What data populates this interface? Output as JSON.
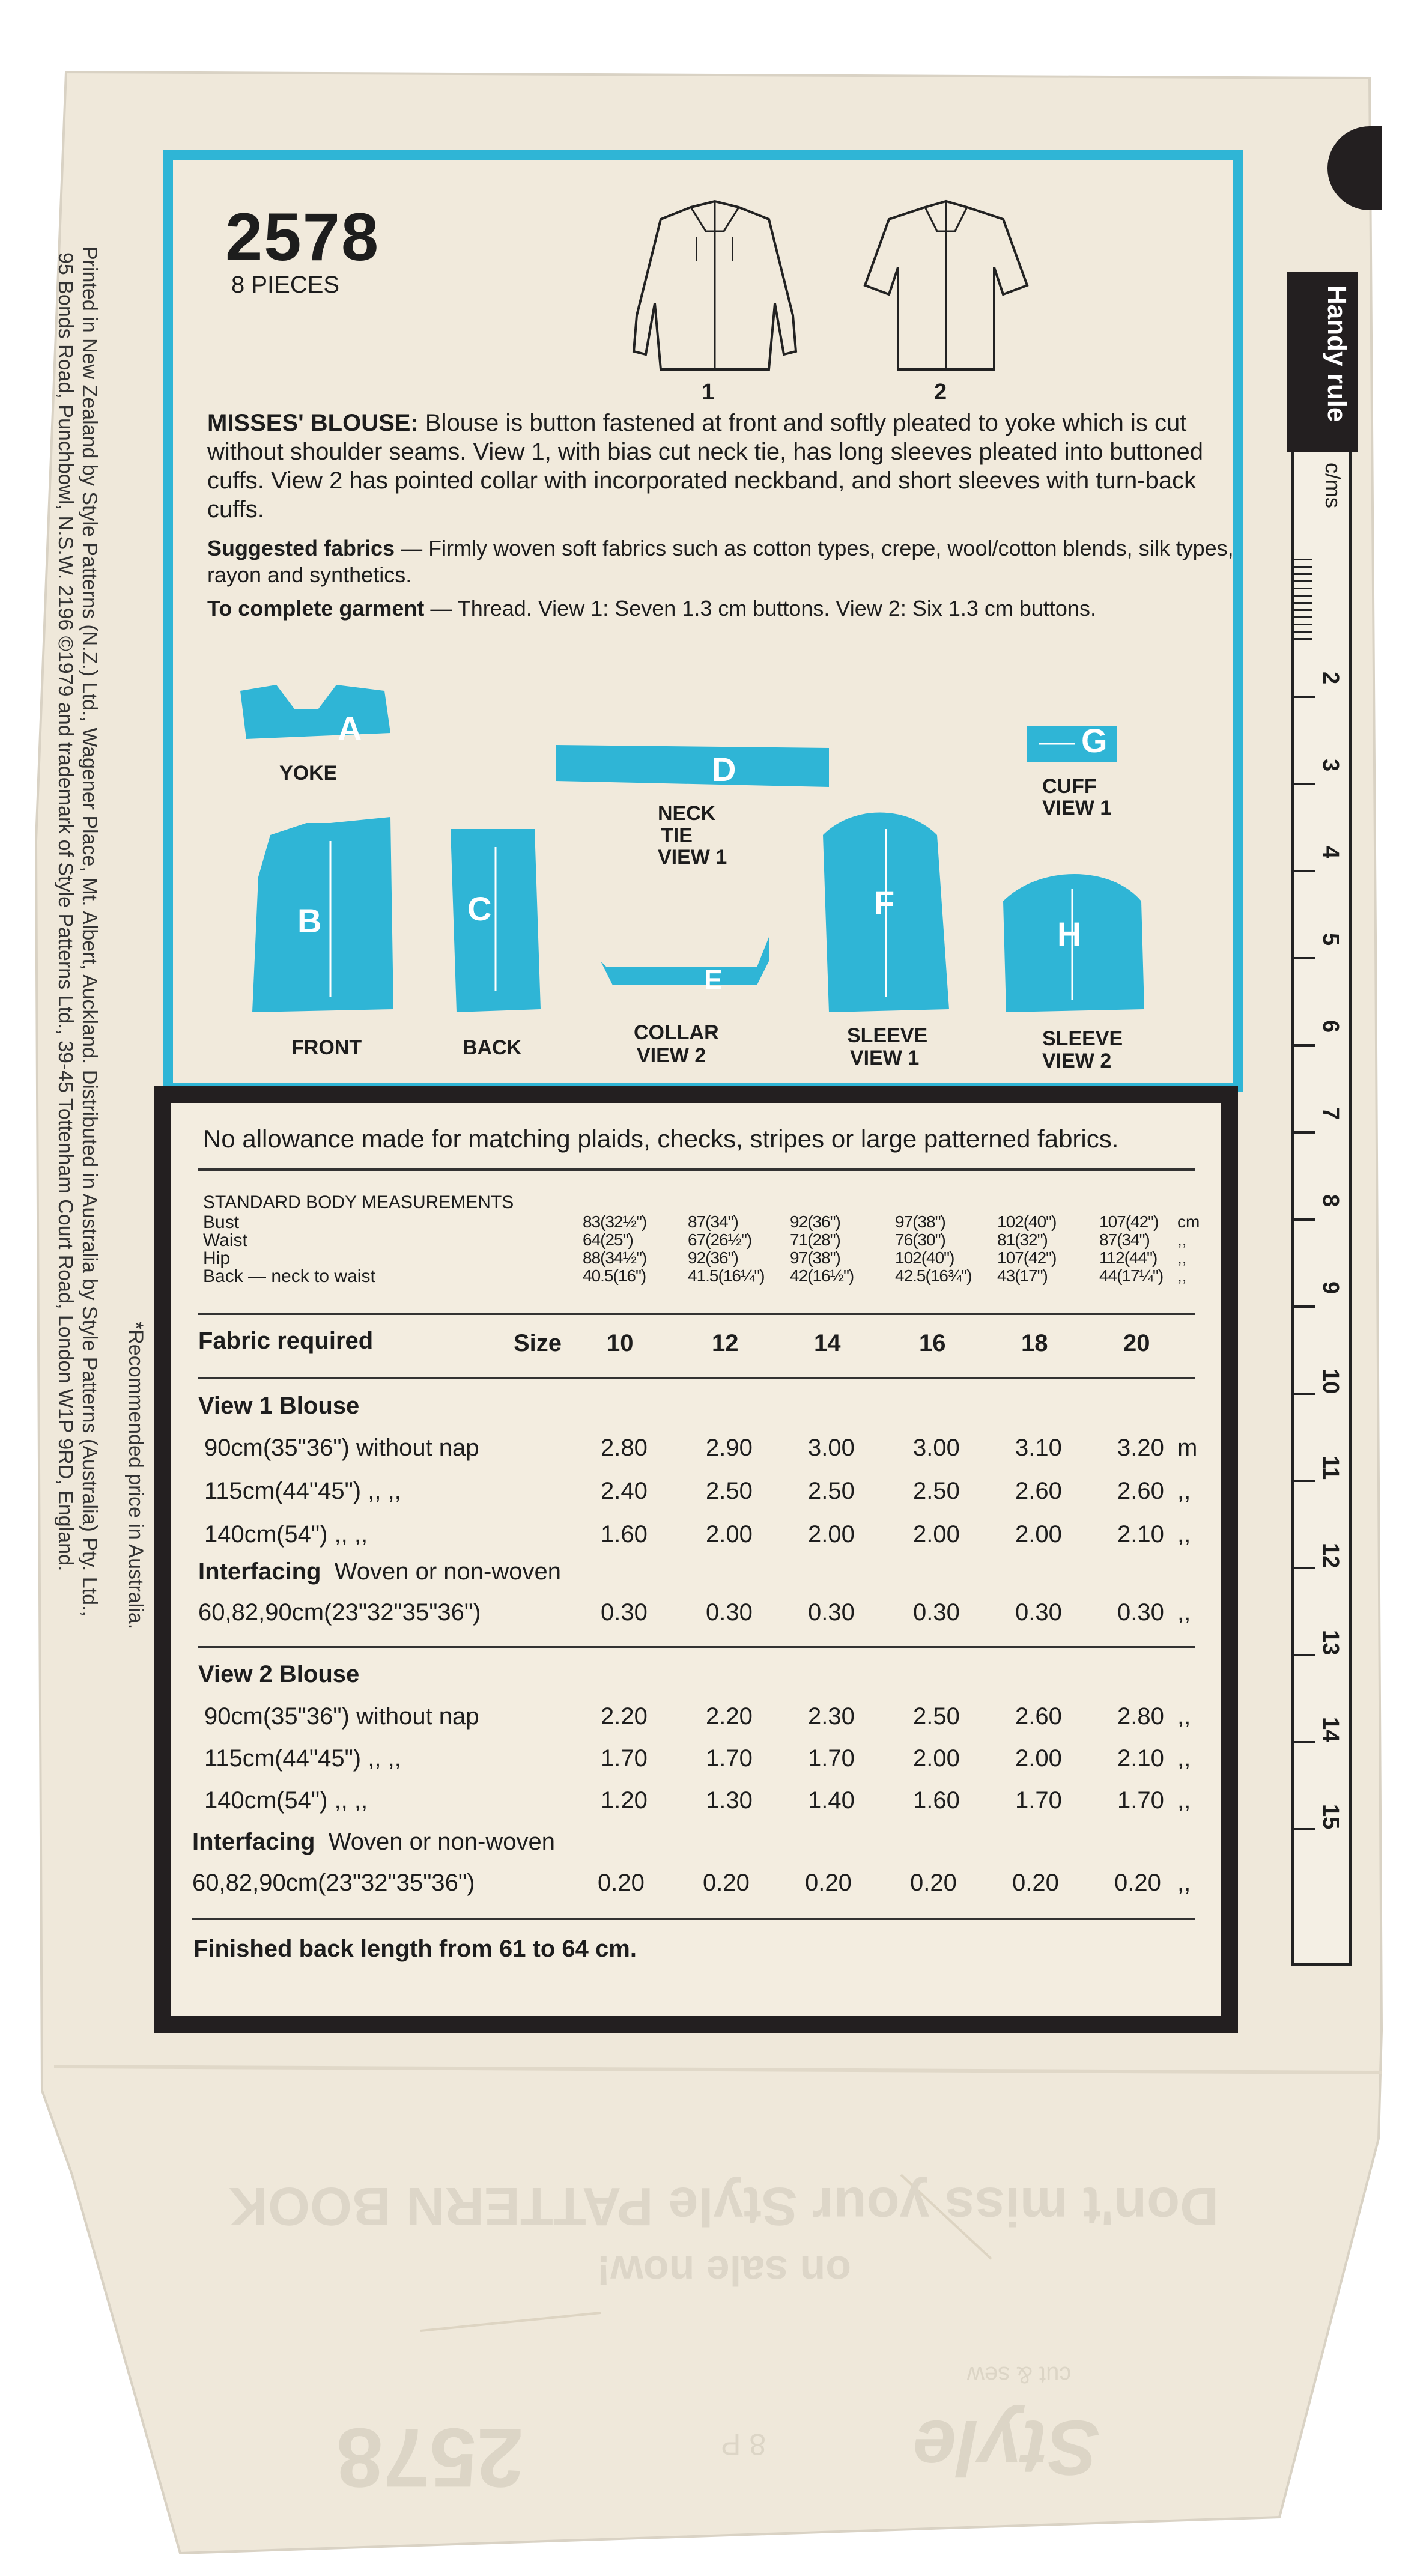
{
  "header": {
    "pattern_number": "2578",
    "pieces": "8 PIECES",
    "view1_label": "1",
    "view2_label": "2"
  },
  "description": {
    "title": "MISSES' BLOUSE:",
    "body_line1": "Blouse is button fastened at front and softly pleated to yoke which is cut",
    "body_line2": "without shoulder seams. View 1, with bias cut neck tie, has long sleeves pleated into buttoned",
    "body_line3": "cuffs. View 2 has pointed collar with incorporated neckband, and short sleeves with turn-back",
    "body_line4": "cuffs.",
    "fabrics_label": "Suggested fabrics",
    "fabrics_line1": " — Firmly woven soft fabrics such as cotton types, crepe, wool/cotton blends, silk types,",
    "fabrics_line2": "rayon and synthetics.",
    "complete_label": "To complete garment",
    "complete_text": " — Thread. View 1: Seven 1.3 cm buttons. View 2: Six 1.3 cm buttons."
  },
  "pieces_diagram": {
    "yoke": {
      "letter": "A",
      "label": "YOKE"
    },
    "neck_tie": {
      "letter": "D",
      "label1": "NECK",
      "label2": "TIE",
      "label3": "VIEW 1"
    },
    "cuff": {
      "letter": "G",
      "label1": "CUFF",
      "label2": "VIEW 1"
    },
    "front": {
      "letter": "B",
      "label": "FRONT"
    },
    "back": {
      "letter": "C",
      "label": "BACK"
    },
    "collar": {
      "letter": "E",
      "label1": "COLLAR",
      "label2": "VIEW 2"
    },
    "sleeve1": {
      "letter": "F",
      "label1": "SLEEVE",
      "label2": "VIEW 1"
    },
    "sleeve2": {
      "letter": "H",
      "label1": "SLEEVE",
      "label2": "VIEW 2"
    }
  },
  "side_text": {
    "line1": "Printed in New Zealand by Style Patterns (N.Z.) Ltd., Wagener Place, Mt. Albert, Auckland. Distributed in Australia by Style Patterns (Australia) Pty. Ltd.,",
    "line2": "95 Bonds Road, Punchbowl, N.S.W. 2196    ©1979 and trademark of Style Patterns Ltd., 39-45 Tottenham Court Road, London W1P 9RD, England.",
    "line3": "*Recommended price in Australia."
  },
  "ruler": {
    "title": "Handy rule",
    "unit": "c/ms",
    "marks": [
      "2",
      "3",
      "4",
      "5",
      "6",
      "7",
      "8",
      "9",
      "10",
      "11",
      "12",
      "13",
      "14",
      "15"
    ]
  },
  "table": {
    "note": "No allowance made for matching plaids, checks, stripes or large patterned fabrics.",
    "measurements_title": "STANDARD BODY MEASUREMENTS",
    "measure_rows": [
      {
        "label": "Bust",
        "values": [
          "83(32½\")",
          "87(34\")",
          "92(36\")",
          "97(38\")",
          "102(40\")",
          "107(42\")"
        ],
        "unit": "cm"
      },
      {
        "label": "Waist",
        "values": [
          "64(25\")",
          "67(26½\")",
          "71(28\")",
          "76(30\")",
          "81(32\")",
          "87(34\")"
        ],
        "unit": ",,"
      },
      {
        "label": "Hip",
        "values": [
          "88(34½\")",
          "92(36\")",
          "97(38\")",
          "102(40\")",
          "107(42\")",
          "112(44\")"
        ],
        "unit": ",,"
      },
      {
        "label": "Back — neck to waist",
        "values": [
          "40.5(16\")",
          "41.5(16¼\")",
          "42(16½\")",
          "42.5(16¾\")",
          "43(17\")",
          "44(17¼\")"
        ],
        "unit": ",,"
      }
    ],
    "fabric_required": "Fabric required",
    "size_label": "Size",
    "sizes": [
      "10",
      "12",
      "14",
      "16",
      "18",
      "20"
    ],
    "view1_title": "View 1   Blouse",
    "view1_rows": [
      {
        "label": "90cm(35\"36\") without nap",
        "values": [
          "2.80",
          "2.90",
          "3.00",
          "3.00",
          "3.10",
          "3.20"
        ],
        "unit": "m"
      },
      {
        "label": "115cm(44\"45\")      ,,     ,,",
        "values": [
          "2.40",
          "2.50",
          "2.50",
          "2.50",
          "2.60",
          "2.60"
        ],
        "unit": ",,"
      },
      {
        "label": "140cm(54\")          ,,     ,,",
        "values": [
          "1.60",
          "2.00",
          "2.00",
          "2.00",
          "2.00",
          "2.10"
        ],
        "unit": ",,"
      }
    ],
    "view1_interfacing_label": "Interfacing",
    "view1_interfacing_text": "Woven or non-woven",
    "view1_interfacing_row": {
      "label": "60,82,90cm(23\"32\"35\"36\")",
      "values": [
        "0.30",
        "0.30",
        "0.30",
        "0.30",
        "0.30",
        "0.30"
      ],
      "unit": ",,"
    },
    "view2_title": "View 2   Blouse",
    "view2_rows": [
      {
        "label": "90cm(35\"36\") without nap",
        "values": [
          "2.20",
          "2.20",
          "2.30",
          "2.50",
          "2.60",
          "2.80"
        ],
        "unit": ",,"
      },
      {
        "label": "115cm(44\"45\")      ,,     ,,",
        "values": [
          "1.70",
          "1.70",
          "1.70",
          "2.00",
          "2.00",
          "2.10"
        ],
        "unit": ",,"
      },
      {
        "label": "140cm(54\")          ,,     ,,",
        "values": [
          "1.20",
          "1.30",
          "1.40",
          "1.60",
          "1.70",
          "1.70"
        ],
        "unit": ",,"
      }
    ],
    "view2_interfacing_label": "Interfacing",
    "view2_interfacing_text": "Woven or non-woven",
    "view2_interfacing_row": {
      "label": "60,82,90cm(23\"32\"35\"36\")",
      "values": [
        "0.20",
        "0.20",
        "0.20",
        "0.20",
        "0.20",
        "0.20"
      ],
      "unit": ",,"
    },
    "finished_length": "Finished back length from 61 to 64 cm."
  },
  "bottom_mirror": {
    "line1": "Don't miss your Style PATTERN BOOK",
    "line2": "on sale now!",
    "brand": "Style",
    "brand_small": "cut & sew",
    "number": "2578",
    "small": "8 P"
  },
  "colors": {
    "paper": "#efe8da",
    "blue": "#2fb5d6",
    "black": "#231f20"
  }
}
